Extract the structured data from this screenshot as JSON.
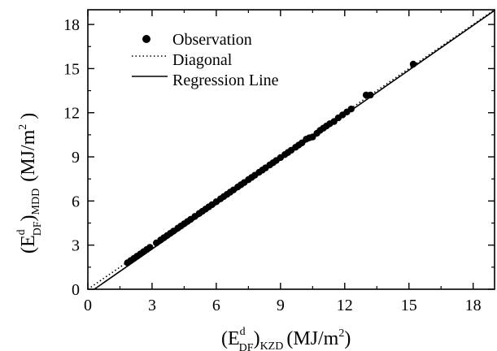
{
  "chart_data": {
    "type": "scatter",
    "title": "",
    "xlim": [
      0,
      19
    ],
    "ylim": [
      0,
      19
    ],
    "xticks": [
      0,
      3,
      6,
      9,
      12,
      15,
      18
    ],
    "yticks": [
      0,
      3,
      6,
      9,
      12,
      15,
      18
    ],
    "xlabel": {
      "prefix": "(E",
      "sup": "d",
      "sub_inner": "DF",
      "close": ")",
      "sub_outer": "KZD",
      "unit": "(MJ/m",
      "unit_sup": "2",
      "unit_close": ")"
    },
    "ylabel": {
      "prefix": "(E",
      "sup": "d",
      "sub_inner": "DF",
      "close": ")",
      "sub_outer": "MDD",
      "unit": "(MJ/m",
      "unit_sup": "2",
      "unit_close": " )"
    },
    "legend": {
      "placement": "top-left",
      "entries": [
        {
          "label": "Observation",
          "marker": "dot"
        },
        {
          "label": "Diagonal",
          "marker": "dotted-line"
        },
        {
          "label": "Regression Line",
          "marker": "solid-line"
        }
      ]
    },
    "series": [
      {
        "name": "Observation",
        "kind": "points",
        "points": [
          [
            1.85,
            1.8
          ],
          [
            2.0,
            1.95
          ],
          [
            2.15,
            2.1
          ],
          [
            2.3,
            2.25
          ],
          [
            2.45,
            2.4
          ],
          [
            2.6,
            2.55
          ],
          [
            2.75,
            2.7
          ],
          [
            2.9,
            2.85
          ],
          [
            3.2,
            3.15
          ],
          [
            3.4,
            3.35
          ],
          [
            3.55,
            3.5
          ],
          [
            3.7,
            3.65
          ],
          [
            3.85,
            3.8
          ],
          [
            4.0,
            3.95
          ],
          [
            4.2,
            4.15
          ],
          [
            4.35,
            4.3
          ],
          [
            4.5,
            4.45
          ],
          [
            4.65,
            4.6
          ],
          [
            4.8,
            4.75
          ],
          [
            5.0,
            4.95
          ],
          [
            5.2,
            5.15
          ],
          [
            5.35,
            5.3
          ],
          [
            5.5,
            5.45
          ],
          [
            5.65,
            5.6
          ],
          [
            5.8,
            5.75
          ],
          [
            6.0,
            5.95
          ],
          [
            6.2,
            6.15
          ],
          [
            6.35,
            6.3
          ],
          [
            6.5,
            6.45
          ],
          [
            6.65,
            6.6
          ],
          [
            6.8,
            6.75
          ],
          [
            7.0,
            6.95
          ],
          [
            7.15,
            7.1
          ],
          [
            7.3,
            7.25
          ],
          [
            7.5,
            7.45
          ],
          [
            7.65,
            7.6
          ],
          [
            7.8,
            7.75
          ],
          [
            8.0,
            7.95
          ],
          [
            8.15,
            8.1
          ],
          [
            8.3,
            8.25
          ],
          [
            8.5,
            8.45
          ],
          [
            8.65,
            8.6
          ],
          [
            8.8,
            8.75
          ],
          [
            9.0,
            8.95
          ],
          [
            9.2,
            9.15
          ],
          [
            9.35,
            9.3
          ],
          [
            9.5,
            9.45
          ],
          [
            9.7,
            9.65
          ],
          [
            9.85,
            9.8
          ],
          [
            10.0,
            9.95
          ],
          [
            10.2,
            10.2
          ],
          [
            10.35,
            10.3
          ],
          [
            10.5,
            10.35
          ],
          [
            10.7,
            10.6
          ],
          [
            10.85,
            10.8
          ],
          [
            11.0,
            10.95
          ],
          [
            11.15,
            11.1
          ],
          [
            11.3,
            11.25
          ],
          [
            11.5,
            11.4
          ],
          [
            11.7,
            11.65
          ],
          [
            11.9,
            11.85
          ],
          [
            12.1,
            12.05
          ],
          [
            12.3,
            12.25
          ],
          [
            13.0,
            13.2
          ],
          [
            13.2,
            13.2
          ],
          [
            15.2,
            15.3
          ]
        ]
      },
      {
        "name": "Diagonal",
        "kind": "line",
        "style": "dotted",
        "from": [
          0,
          0
        ],
        "to": [
          19,
          19
        ]
      },
      {
        "name": "Regression Line",
        "kind": "line",
        "style": "solid",
        "from": [
          0.3,
          0
        ],
        "to": [
          19,
          18.95
        ]
      }
    ]
  }
}
